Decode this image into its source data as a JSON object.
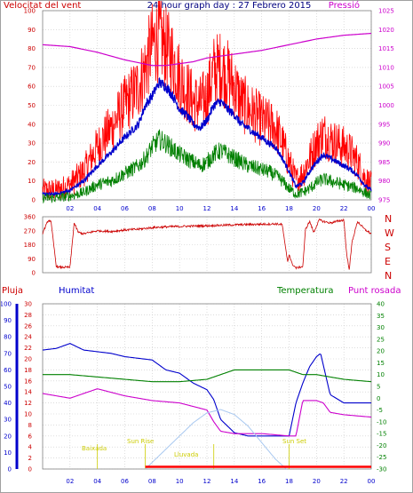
{
  "chart_data": [
    {
      "type": "line",
      "title": "24 hour graph day : 27 Febrero 2015",
      "left_label": "Velocitat del vent",
      "right_label": "Pressió",
      "x_ticks": [
        "02",
        "04",
        "06",
        "08",
        "10",
        "12",
        "14",
        "16",
        "18",
        "20",
        "22",
        "00"
      ],
      "y_left_ticks": [
        0,
        10,
        20,
        30,
        40,
        50,
        60,
        70,
        80,
        90,
        100
      ],
      "y_right_ticks": [
        975,
        980,
        985,
        990,
        995,
        1000,
        1005,
        1010,
        1015,
        1020,
        1025
      ],
      "ylim_left": [
        0,
        100
      ],
      "ylim_right": [
        975,
        1025
      ],
      "grid": true,
      "colors": {
        "gust": "#ff0000",
        "average": "#0000cc",
        "low": "#008000",
        "pressure": "#cc00cc",
        "title": "#000080",
        "left": "#cc0000",
        "right": "#cc00cc"
      },
      "series": [
        {
          "key": "gust",
          "x": [
            0,
            1,
            2,
            3,
            4,
            5,
            6,
            7,
            7.5,
            8,
            8.5,
            9,
            9.5,
            10,
            10.5,
            11,
            11.5,
            12,
            12.5,
            13,
            13.5,
            14,
            14.5,
            15,
            15.5,
            16,
            16.5,
            17,
            17.5,
            18,
            18.5,
            19,
            19.5,
            20,
            20.5,
            21,
            21.5,
            22,
            22.5,
            23,
            23.5,
            24
          ],
          "values": [
            5,
            5,
            8,
            15,
            28,
            38,
            50,
            60,
            70,
            82,
            86,
            80,
            75,
            65,
            58,
            52,
            50,
            55,
            68,
            70,
            66,
            60,
            52,
            48,
            45,
            42,
            40,
            38,
            30,
            20,
            10,
            14,
            22,
            30,
            35,
            32,
            30,
            28,
            25,
            20,
            12,
            8
          ]
        },
        {
          "key": "average",
          "x": [
            0,
            1,
            2,
            3,
            4,
            5,
            6,
            7,
            7.5,
            8,
            8.5,
            9,
            9.5,
            10,
            10.5,
            11,
            11.5,
            12,
            12.5,
            13,
            13.5,
            14,
            14.5,
            15,
            15.5,
            16,
            16.5,
            17,
            17.5,
            18,
            18.5,
            19,
            19.5,
            20,
            20.5,
            21,
            21.5,
            22,
            22.5,
            23,
            23.5,
            24
          ],
          "values": [
            3,
            3,
            5,
            10,
            18,
            25,
            33,
            40,
            50,
            55,
            62,
            60,
            55,
            48,
            45,
            40,
            38,
            42,
            50,
            52,
            48,
            45,
            40,
            38,
            35,
            33,
            30,
            28,
            22,
            15,
            7,
            9,
            15,
            20,
            24,
            22,
            20,
            18,
            16,
            13,
            8,
            5
          ]
        },
        {
          "key": "low",
          "x": [
            0,
            1,
            2,
            3,
            4,
            5,
            6,
            7,
            7.5,
            8,
            8.5,
            9,
            9.5,
            10,
            10.5,
            11,
            11.5,
            12,
            12.5,
            13,
            13.5,
            14,
            14.5,
            15,
            15.5,
            16,
            16.5,
            17,
            17.5,
            18,
            18.5,
            19,
            19.5,
            20,
            20.5,
            21,
            21.5,
            22,
            22.5,
            23,
            23.5,
            24
          ],
          "values": [
            1,
            1,
            2,
            4,
            8,
            10,
            14,
            18,
            22,
            28,
            32,
            30,
            27,
            24,
            22,
            20,
            18,
            20,
            24,
            26,
            24,
            22,
            20,
            18,
            17,
            16,
            15,
            13,
            10,
            6,
            3,
            4,
            6,
            9,
            11,
            10,
            9,
            8,
            7,
            6,
            4,
            2
          ]
        },
        {
          "key": "pressure",
          "x": [
            0,
            2,
            4,
            6,
            8,
            9,
            10,
            11,
            12,
            14,
            16,
            18,
            20,
            22,
            24
          ],
          "values": [
            1016,
            1015.5,
            1014,
            1012,
            1010.5,
            1010.5,
            1011,
            1011.5,
            1012.5,
            1013.5,
            1014.5,
            1016,
            1017.5,
            1018.5,
            1019
          ]
        }
      ]
    },
    {
      "type": "line",
      "title": "",
      "right_labels": [
        "N",
        "W",
        "S",
        "E",
        "N"
      ],
      "x_ticks": [
        "02",
        "04",
        "06",
        "08",
        "10",
        "12",
        "14",
        "16",
        "18",
        "20",
        "22",
        "00"
      ],
      "y_ticks": [
        0,
        90,
        180,
        270,
        360
      ],
      "ylim": [
        0,
        360
      ],
      "grid": true,
      "colors": {
        "direction": "#cc0000",
        "labels": "#cc0000"
      },
      "series": [
        {
          "key": "direction",
          "x": [
            0,
            0.4,
            0.6,
            1,
            1.2,
            2,
            2.3,
            2.6,
            3,
            4,
            5,
            6,
            7,
            8,
            9,
            10,
            11,
            12,
            13,
            14,
            15,
            16,
            17,
            17.5,
            17.7,
            17.9,
            18,
            18.2,
            18.5,
            19,
            19.2,
            19.5,
            19.8,
            20,
            20.2,
            20.5,
            21,
            22,
            22.2,
            22.4,
            22.6,
            23,
            23.5,
            24
          ],
          "values": [
            255,
            335,
            335,
            40,
            35,
            35,
            320,
            260,
            250,
            270,
            265,
            275,
            280,
            290,
            295,
            298,
            300,
            302,
            305,
            308,
            310,
            312,
            314,
            310,
            180,
            70,
            120,
            60,
            30,
            40,
            280,
            330,
            260,
            300,
            340,
            330,
            320,
            340,
            120,
            20,
            200,
            330,
            280,
            250
          ]
        }
      ]
    },
    {
      "type": "line",
      "title": "",
      "top_labels": {
        "rain": "Pluja",
        "humidity": "Humitat",
        "temperature": "Temperatura",
        "dewpoint": "Punt rosada"
      },
      "x_ticks": [
        "02",
        "04",
        "06",
        "08",
        "10",
        "12",
        "14",
        "16",
        "18",
        "20",
        "22",
        "00"
      ],
      "y_ticks_humidity": [
        0,
        10,
        20,
        30,
        40,
        50,
        60,
        70,
        80,
        90,
        100
      ],
      "y_ticks_rain": [
        0,
        2,
        4,
        6,
        8,
        10,
        12,
        14,
        16,
        18,
        20,
        22,
        24,
        26,
        28,
        30
      ],
      "y_ticks_temperature": [
        -30,
        -25,
        -20,
        -15,
        -10,
        -5,
        0,
        5,
        10,
        15,
        20,
        25,
        30,
        35,
        40
      ],
      "ylim_humidity": [
        0,
        100
      ],
      "ylim_temperature": [
        -30,
        40
      ],
      "grid": true,
      "colors": {
        "humidity": "#0000cc",
        "temperature": "#008000",
        "dewpoint": "#cc00cc",
        "rain": "#ff0000",
        "solar": "#a8c8f0",
        "annotations": "#cccc00",
        "rain_axis": "#0000cc"
      },
      "annotations": [
        "Baixada",
        "Sun Rise",
        "Lluvada",
        "Sun Set"
      ],
      "series": [
        {
          "key": "humidity",
          "x": [
            0,
            1,
            2,
            3,
            4,
            5,
            6,
            7,
            8,
            9,
            10,
            11,
            12,
            12.5,
            13,
            14,
            15,
            16,
            17,
            17.5,
            18,
            18.5,
            19,
            19.5,
            20,
            20.3,
            21,
            22,
            23,
            24
          ],
          "values": [
            72,
            73,
            76,
            72,
            71,
            70,
            68,
            67,
            66,
            60,
            58,
            52,
            48,
            42,
            30,
            22,
            20,
            20,
            20,
            20,
            20,
            40,
            52,
            62,
            68,
            70,
            45,
            40,
            40,
            40
          ]
        },
        {
          "key": "temperature",
          "x": [
            0,
            2,
            4,
            6,
            8,
            10,
            12,
            14,
            16,
            18,
            19,
            20,
            22,
            24
          ],
          "values": [
            10,
            10,
            9,
            8,
            7,
            7,
            8,
            12,
            12,
            12,
            10,
            10,
            8,
            7
          ]
        },
        {
          "key": "dewpoint",
          "x": [
            0,
            2,
            4,
            6,
            8,
            10,
            12,
            12.5,
            13,
            14,
            16,
            18,
            18.5,
            19,
            20,
            20.5,
            21,
            22,
            24
          ],
          "values": [
            2,
            0,
            4,
            1,
            -1,
            -2,
            -5,
            -10,
            -14,
            -15,
            -15,
            -16,
            -16,
            -1,
            -1,
            -2,
            -6,
            -7,
            -8
          ]
        },
        {
          "key": "solar",
          "x": [
            7.5,
            8,
            9,
            10,
            11,
            12,
            13,
            14,
            15,
            16,
            17,
            17.8
          ],
          "values": [
            0,
            4,
            12,
            20,
            28,
            34,
            36,
            33,
            26,
            16,
            6,
            0
          ]
        },
        {
          "key": "rain",
          "x": [
            7.5,
            24
          ],
          "values": [
            0.4,
            0.4
          ]
        }
      ]
    }
  ]
}
